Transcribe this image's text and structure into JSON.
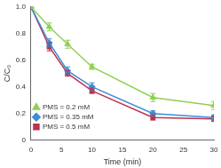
{
  "chart_data": {
    "type": "line",
    "x_label": "Time (min)",
    "y_label": "C/C₀",
    "x": [
      0,
      3,
      6,
      10,
      20,
      30
    ],
    "series": [
      {
        "name": "PMS = 0.2 mM",
        "color": "#8fd14f",
        "marker": "triangle",
        "values": [
          1,
          0.85,
          0.72,
          0.55,
          0.32,
          0.26
        ],
        "errors": [
          0,
          0.03,
          0.03,
          0.02,
          0.03,
          0.03
        ]
      },
      {
        "name": "PMS = 0.35 mM",
        "color": "#3b8ed8",
        "marker": "diamond",
        "values": [
          1,
          0.73,
          0.52,
          0.4,
          0.2,
          0.17
        ],
        "errors": [
          0,
          0.03,
          0.03,
          0.03,
          0.02,
          0.02
        ]
      },
      {
        "name": "PMS = 0.5 mM",
        "color": "#c0304a",
        "marker": "square",
        "values": [
          1,
          0.7,
          0.5,
          0.37,
          0.17,
          0.16
        ],
        "errors": [
          0,
          0.03,
          0.02,
          0.02,
          0.02,
          0.02
        ]
      }
    ],
    "xlim": [
      0,
      30
    ],
    "xticks": [
      0,
      5,
      10,
      15,
      20,
      25,
      30
    ],
    "ylim": [
      0,
      1
    ],
    "yticks": [
      0,
      0.2,
      0.4,
      0.6,
      0.8,
      1
    ],
    "grid": false,
    "legend": "upper right"
  }
}
